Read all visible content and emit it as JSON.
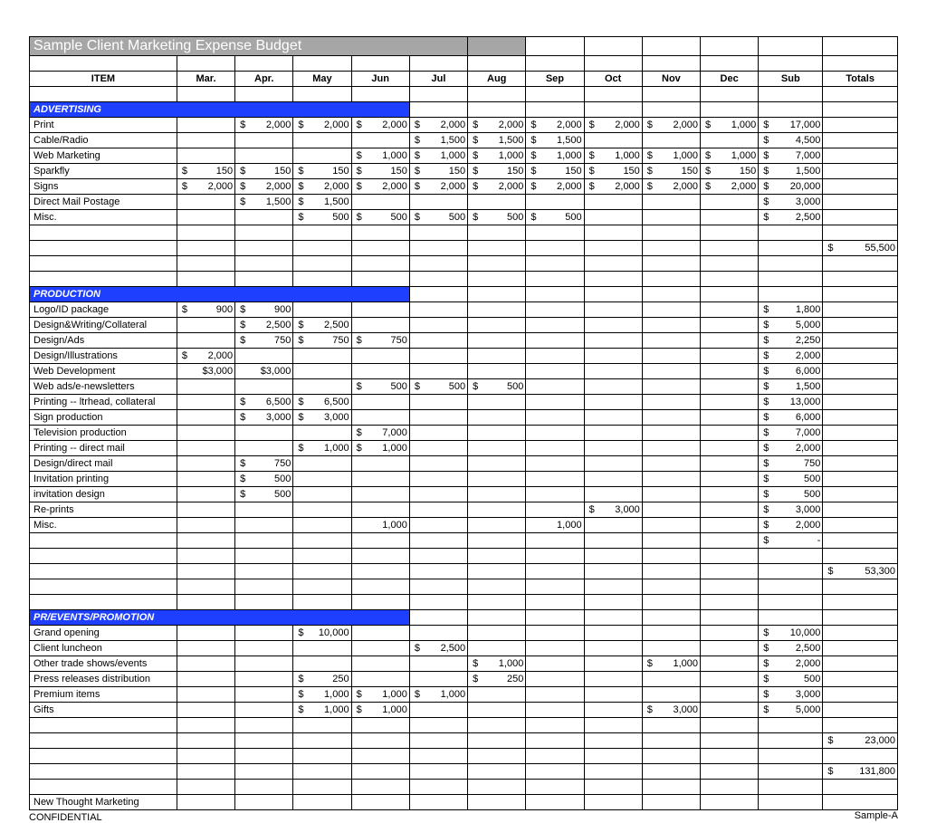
{
  "title": "Sample Client Marketing Expense Budget",
  "columns": [
    "ITEM",
    "Mar.",
    "Apr.",
    "May",
    "Jun",
    "Jul",
    "Aug",
    "Sep",
    "Oct",
    "Nov",
    "Dec",
    "Sub",
    "Totals"
  ],
  "section_bg": "#1f3fff",
  "title_bg": "#a6a6a6",
  "sections": [
    {
      "name": "ADVERTISING",
      "rows": [
        {
          "label": "Print",
          "mar": null,
          "apr": {
            "c": "$",
            "v": "2,000"
          },
          "may": {
            "c": "$",
            "v": "2,000"
          },
          "jun": {
            "c": "$",
            "v": "2,000"
          },
          "jul": {
            "c": "$",
            "v": "2,000"
          },
          "aug": {
            "c": "$",
            "v": "2,000"
          },
          "sep": {
            "c": "$",
            "v": "2,000"
          },
          "oct": {
            "c": "$",
            "v": "2,000"
          },
          "nov": {
            "c": "$",
            "v": "2,000"
          },
          "dec": {
            "c": "$",
            "v": "1,000"
          },
          "sub": {
            "c": "$",
            "v": "17,000"
          }
        },
        {
          "label": "Cable/Radio",
          "jul": {
            "c": "$",
            "v": "1,500"
          },
          "aug": {
            "c": "$",
            "v": "1,500"
          },
          "sep": {
            "c": "$",
            "v": "1,500"
          },
          "sub": {
            "c": "$",
            "v": "4,500"
          }
        },
        {
          "label": "Web Marketing",
          "jun": {
            "c": "$",
            "v": "1,000"
          },
          "jul": {
            "c": "$",
            "v": "1,000"
          },
          "aug": {
            "c": "$",
            "v": "1,000"
          },
          "sep": {
            "c": "$",
            "v": "1,000"
          },
          "oct": {
            "c": "$",
            "v": "1,000"
          },
          "nov": {
            "c": "$",
            "v": "1,000"
          },
          "dec": {
            "c": "$",
            "v": "1,000"
          },
          "sub": {
            "c": "$",
            "v": "7,000"
          }
        },
        {
          "label": "Sparkfly",
          "mar": {
            "c": "$",
            "v": "150"
          },
          "apr": {
            "c": "$",
            "v": "150"
          },
          "may": {
            "c": "$",
            "v": "150"
          },
          "jun": {
            "c": "$",
            "v": "150"
          },
          "jul": {
            "c": "$",
            "v": "150"
          },
          "aug": {
            "c": "$",
            "v": "150"
          },
          "sep": {
            "c": "$",
            "v": "150"
          },
          "oct": {
            "c": "$",
            "v": "150"
          },
          "nov": {
            "c": "$",
            "v": "150"
          },
          "dec": {
            "c": "$",
            "v": "150"
          },
          "sub": {
            "c": "$",
            "v": "1,500"
          }
        },
        {
          "label": "Signs",
          "mar": {
            "c": "$",
            "v": "2,000"
          },
          "apr": {
            "c": "$",
            "v": "2,000"
          },
          "may": {
            "c": "$",
            "v": "2,000"
          },
          "jun": {
            "c": "$",
            "v": "2,000"
          },
          "jul": {
            "c": "$",
            "v": "2,000"
          },
          "aug": {
            "c": "$",
            "v": "2,000"
          },
          "sep": {
            "c": "$",
            "v": "2,000"
          },
          "oct": {
            "c": "$",
            "v": "2,000"
          },
          "nov": {
            "c": "$",
            "v": "2,000"
          },
          "dec": {
            "c": "$",
            "v": "2,000"
          },
          "sub": {
            "c": "$",
            "v": "20,000"
          }
        },
        {
          "label": "Direct Mail Postage",
          "apr": {
            "c": "$",
            "v": "1,500"
          },
          "may": {
            "c": "$",
            "v": "1,500"
          },
          "sub": {
            "c": "$",
            "v": "3,000"
          }
        },
        {
          "label": "Misc.",
          "may": {
            "c": "$",
            "v": "500"
          },
          "jun": {
            "c": "$",
            "v": "500"
          },
          "jul": {
            "c": "$",
            "v": "500"
          },
          "aug": {
            "c": "$",
            "v": "500"
          },
          "sep": {
            "c": "$",
            "v": "500"
          },
          "sub": {
            "c": "$",
            "v": "2,500"
          }
        }
      ],
      "total": {
        "c": "$",
        "v": "55,500"
      },
      "blank_after": 2
    },
    {
      "name": "PRODUCTION",
      "rows": [
        {
          "label": "Logo/ID package",
          "mar": {
            "c": "$",
            "v": "900"
          },
          "apr": {
            "c": "$",
            "v": "900"
          },
          "sub": {
            "c": "$",
            "v": "1,800"
          }
        },
        {
          "label": "Design&Writing/Collateral",
          "apr": {
            "c": "$",
            "v": "2,500"
          },
          "may": {
            "c": "$",
            "v": "2,500"
          },
          "sub": {
            "c": "$",
            "v": "5,000"
          }
        },
        {
          "label": "Design/Ads",
          "apr": {
            "c": "$",
            "v": "750"
          },
          "may": {
            "c": "$",
            "v": "750"
          },
          "jun": {
            "c": "$",
            "v": "750"
          },
          "sub": {
            "c": "$",
            "v": "2,250"
          }
        },
        {
          "label": "Design/Illustrations",
          "mar": {
            "c": "$",
            "v": "2,000"
          },
          "sub": {
            "c": "$",
            "v": "2,000"
          }
        },
        {
          "label": "Web Development",
          "mar": {
            "c": "",
            "v": "$3,000"
          },
          "apr": {
            "c": "",
            "v": "$3,000"
          },
          "sub": {
            "c": "$",
            "v": "6,000"
          }
        },
        {
          "label": "Web ads/e-newsletters",
          "jun": {
            "c": "$",
            "v": "500"
          },
          "jul": {
            "c": "$",
            "v": "500"
          },
          "aug": {
            "c": "$",
            "v": "500"
          },
          "sub": {
            "c": "$",
            "v": "1,500"
          }
        },
        {
          "label": "Printing -- ltrhead, collateral",
          "apr": {
            "c": "$",
            "v": "6,500"
          },
          "may": {
            "c": "$",
            "v": "6,500"
          },
          "sub": {
            "c": "$",
            "v": "13,000"
          }
        },
        {
          "label": "Sign production",
          "apr": {
            "c": "$",
            "v": "3,000"
          },
          "may": {
            "c": "$",
            "v": "3,000"
          },
          "sub": {
            "c": "$",
            "v": "6,000"
          }
        },
        {
          "label": "Television production",
          "jun": {
            "c": "$",
            "v": "7,000"
          },
          "sub": {
            "c": "$",
            "v": "7,000"
          }
        },
        {
          "label": "Printing -- direct mail",
          "may": {
            "c": "$",
            "v": "1,000"
          },
          "jun": {
            "c": "$",
            "v": "1,000"
          },
          "sub": {
            "c": "$",
            "v": "2,000"
          }
        },
        {
          "label": "Design/direct mail",
          "apr": {
            "c": "$",
            "v": "750"
          },
          "sub": {
            "c": "$",
            "v": "750"
          }
        },
        {
          "label": "Invitation printing",
          "apr": {
            "c": "$",
            "v": "500"
          },
          "sub": {
            "c": "$",
            "v": "500"
          }
        },
        {
          "label": "invitation design",
          "apr": {
            "c": "$",
            "v": "500"
          },
          "sub": {
            "c": "$",
            "v": "500"
          }
        },
        {
          "label": "Re-prints",
          "oct": {
            "c": "$",
            "v": "3,000"
          },
          "sub": {
            "c": "$",
            "v": "3,000"
          }
        },
        {
          "label": "Misc.",
          "jun": {
            "c": "",
            "v": "1,000"
          },
          "sep": {
            "c": "",
            "v": "1,000"
          },
          "sub": {
            "c": "$",
            "v": "2,000"
          }
        },
        {
          "label": "",
          "sub": {
            "c": "$",
            "v": "-"
          }
        }
      ],
      "total": {
        "c": "$",
        "v": "53,300"
      },
      "blank_after": 2
    },
    {
      "name": "PR/EVENTS/PROMOTION",
      "rows": [
        {
          "label": "Grand opening",
          "may": {
            "c": "$",
            "v": "10,000"
          },
          "sub": {
            "c": "$",
            "v": "10,000"
          }
        },
        {
          "label": "Client luncheon",
          "jul": {
            "c": "$",
            "v": "2,500"
          },
          "sub": {
            "c": "$",
            "v": "2,500"
          }
        },
        {
          "label": "Other trade shows/events",
          "aug": {
            "c": "$",
            "v": "1,000"
          },
          "nov": {
            "c": "$",
            "v": "1,000"
          },
          "sub": {
            "c": "$",
            "v": "2,000"
          }
        },
        {
          "label": "Press releases distribution",
          "may": {
            "c": "$",
            "v": "250"
          },
          "aug": {
            "c": "$",
            "v": "250"
          },
          "sub": {
            "c": "$",
            "v": "500"
          }
        },
        {
          "label": "Premium items",
          "may": {
            "c": "$",
            "v": "1,000"
          },
          "jun": {
            "c": "$",
            "v": "1,000"
          },
          "jul": {
            "c": "$",
            "v": "1,000"
          },
          "sub": {
            "c": "$",
            "v": "3,000"
          }
        },
        {
          "label": "Gifts",
          "may": {
            "c": "$",
            "v": "1,000"
          },
          "jun": {
            "c": "$",
            "v": "1,000"
          },
          "nov": {
            "c": "$",
            "v": "3,000"
          },
          "sub": {
            "c": "$",
            "v": "5,000"
          }
        }
      ],
      "total": {
        "c": "$",
        "v": "23,000"
      },
      "blank_after": 0
    }
  ],
  "grand_total": {
    "c": "$",
    "v": "131,800"
  },
  "footer_line1": "New Thought Marketing",
  "footer_line2": "CONFIDENTIAL",
  "footer_right": "Sample-A"
}
